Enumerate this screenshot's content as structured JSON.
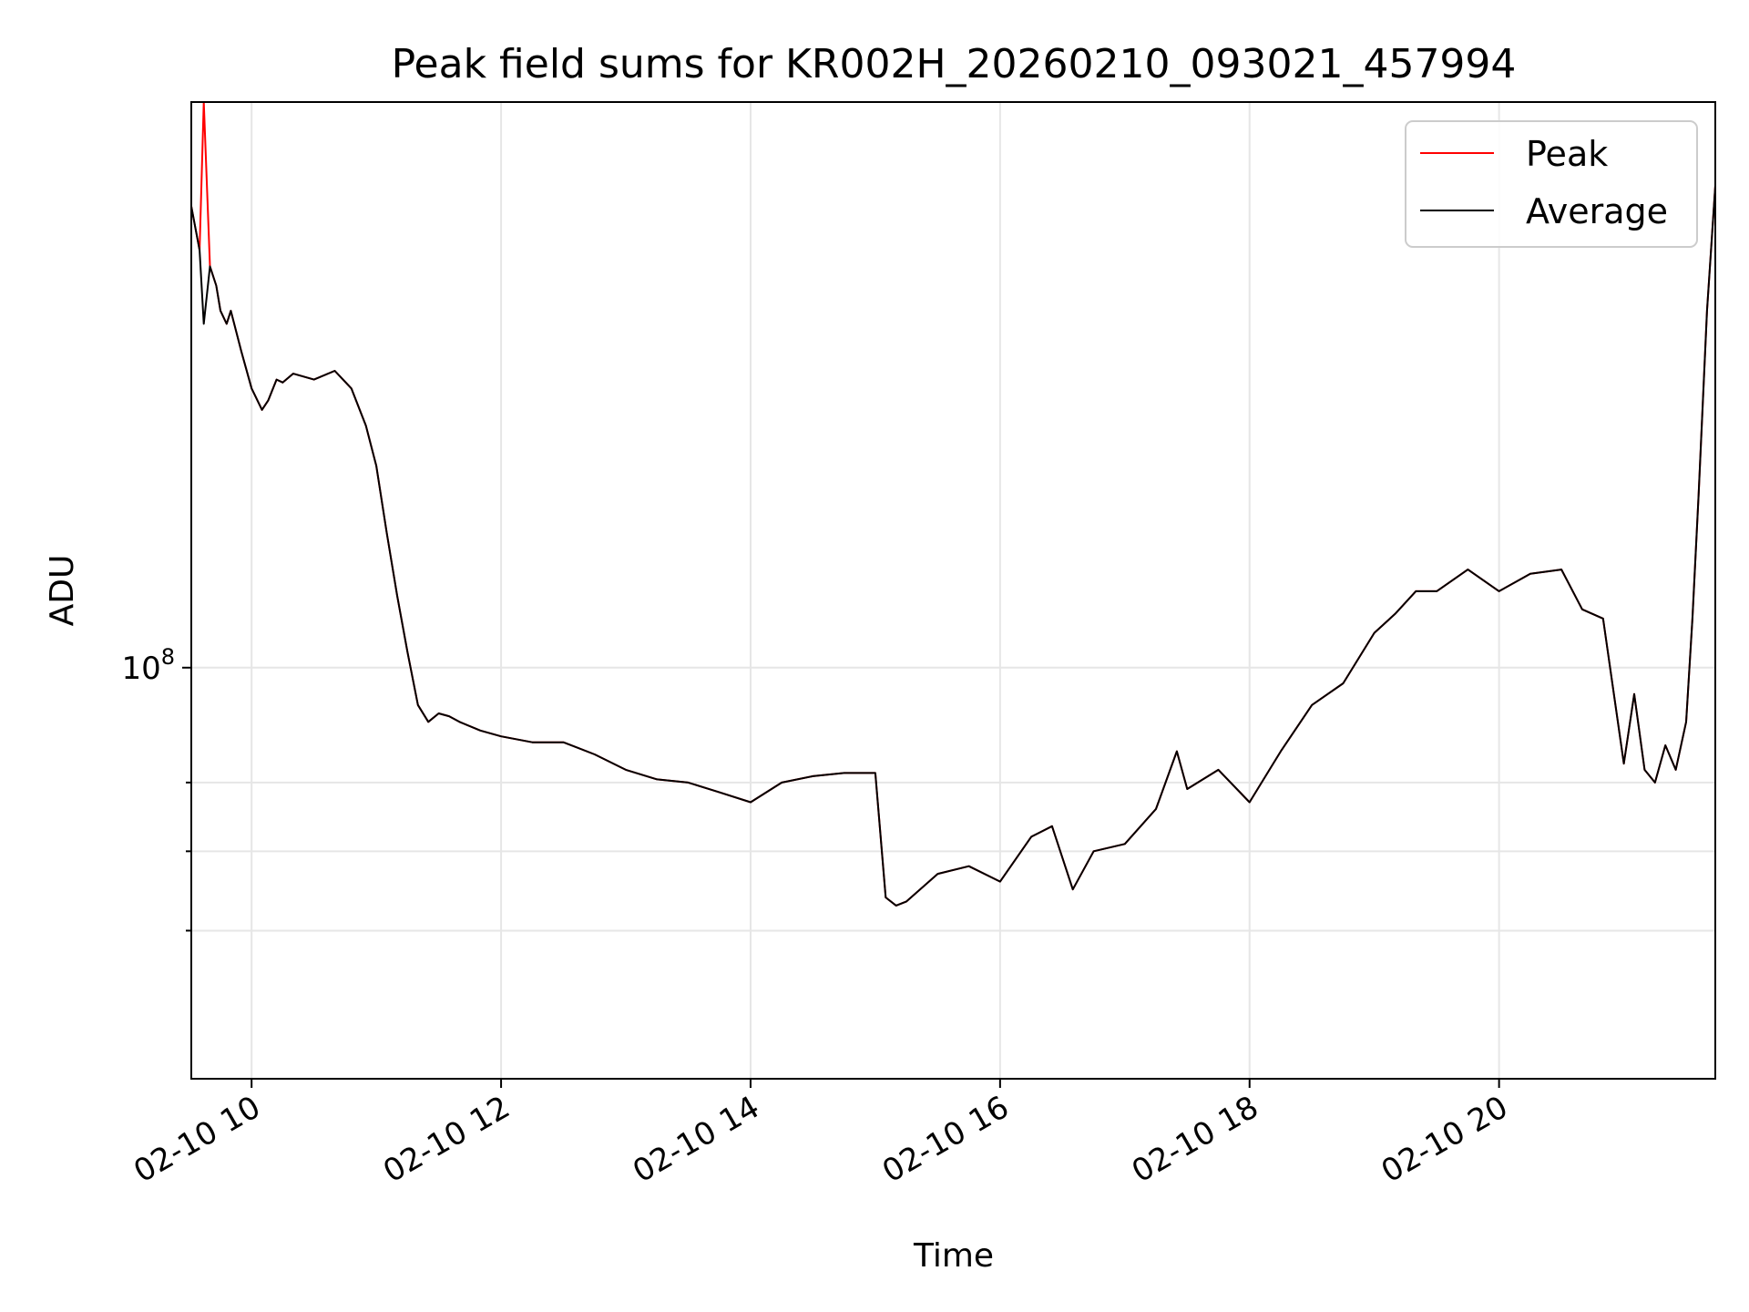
{
  "chart_data": {
    "type": "line",
    "title": "Peak field sums for KR002H_20260210_093021_457994",
    "xlabel": "Time",
    "ylabel": "ADU",
    "x_range": [
      "2026-02-10 09:31",
      "2026-02-10 21:44"
    ],
    "ylim": [
      45000000,
      300000000
    ],
    "yscale": "log",
    "grid": true,
    "legend_position": "upper right",
    "x_ticks": [
      {
        "time": "2026-02-10 10:00",
        "label": "02-10 10"
      },
      {
        "time": "2026-02-10 12:00",
        "label": "02-10 12"
      },
      {
        "time": "2026-02-10 14:00",
        "label": "02-10 14"
      },
      {
        "time": "2026-02-10 16:00",
        "label": "02-10 16"
      },
      {
        "time": "2026-02-10 18:00",
        "label": "02-10 18"
      },
      {
        "time": "2026-02-10 20:00",
        "label": "02-10 20"
      }
    ],
    "y_ticks": [
      {
        "value": 100000000,
        "base": "10",
        "exp": "8"
      },
      {
        "value": 60000000,
        "base": "",
        "exp": ""
      },
      {
        "value": 70000000,
        "base": "",
        "exp": ""
      },
      {
        "value": 80000000,
        "base": "",
        "exp": ""
      }
    ],
    "x": [
      "2026-02-10 09:31",
      "2026-02-10 09:35",
      "2026-02-10 09:37",
      "2026-02-10 09:40",
      "2026-02-10 09:43",
      "2026-02-10 09:45",
      "2026-02-10 09:48",
      "2026-02-10 09:50",
      "2026-02-10 09:55",
      "2026-02-10 10:00",
      "2026-02-10 10:05",
      "2026-02-10 10:08",
      "2026-02-10 10:12",
      "2026-02-10 10:15",
      "2026-02-10 10:20",
      "2026-02-10 10:30",
      "2026-02-10 10:40",
      "2026-02-10 10:48",
      "2026-02-10 10:55",
      "2026-02-10 11:00",
      "2026-02-10 11:05",
      "2026-02-10 11:10",
      "2026-02-10 11:15",
      "2026-02-10 11:20",
      "2026-02-10 11:25",
      "2026-02-10 11:30",
      "2026-02-10 11:35",
      "2026-02-10 11:40",
      "2026-02-10 11:50",
      "2026-02-10 12:00",
      "2026-02-10 12:15",
      "2026-02-10 12:30",
      "2026-02-10 12:45",
      "2026-02-10 13:00",
      "2026-02-10 13:15",
      "2026-02-10 13:30",
      "2026-02-10 13:45",
      "2026-02-10 14:00",
      "2026-02-10 14:15",
      "2026-02-10 14:30",
      "2026-02-10 14:45",
      "2026-02-10 15:00",
      "2026-02-10 15:05",
      "2026-02-10 15:10",
      "2026-02-10 15:15",
      "2026-02-10 15:30",
      "2026-02-10 15:45",
      "2026-02-10 16:00",
      "2026-02-10 16:15",
      "2026-02-10 16:25",
      "2026-02-10 16:35",
      "2026-02-10 16:45",
      "2026-02-10 17:00",
      "2026-02-10 17:15",
      "2026-02-10 17:25",
      "2026-02-10 17:30",
      "2026-02-10 17:45",
      "2026-02-10 18:00",
      "2026-02-10 18:15",
      "2026-02-10 18:30",
      "2026-02-10 18:45",
      "2026-02-10 19:00",
      "2026-02-10 19:10",
      "2026-02-10 19:20",
      "2026-02-10 19:30",
      "2026-02-10 19:45",
      "2026-02-10 20:00",
      "2026-02-10 20:15",
      "2026-02-10 20:30",
      "2026-02-10 20:40",
      "2026-02-10 20:50",
      "2026-02-10 21:00",
      "2026-02-10 21:05",
      "2026-02-10 21:10",
      "2026-02-10 21:15",
      "2026-02-10 21:20",
      "2026-02-10 21:25",
      "2026-02-10 21:30",
      "2026-02-10 21:33",
      "2026-02-10 21:36",
      "2026-02-10 21:40",
      "2026-02-10 21:44"
    ],
    "series": [
      {
        "name": "Peak",
        "color": "#ff0000",
        "values": [
          245000000,
          225000000,
          300000000,
          218000000,
          210000000,
          200000000,
          195000000,
          200000000,
          185000000,
          172000000,
          165000000,
          168000000,
          175000000,
          174000000,
          177000000,
          175000000,
          178000000,
          172000000,
          160000000,
          148000000,
          130000000,
          115000000,
          103000000,
          93000000,
          90000000,
          91500000,
          91000000,
          90000000,
          88500000,
          87500000,
          86500000,
          86500000,
          84500000,
          82000000,
          80500000,
          80000000,
          78500000,
          77000000,
          80000000,
          81000000,
          81500000,
          81500000,
          64000000,
          63000000,
          63500000,
          67000000,
          68000000,
          66000000,
          72000000,
          73500000,
          65000000,
          70000000,
          71000000,
          76000000,
          85000000,
          79000000,
          82000000,
          77000000,
          85000000,
          93000000,
          97000000,
          107000000,
          111000000,
          116000000,
          116000000,
          121000000,
          116000000,
          120000000,
          121000000,
          112000000,
          110000000,
          83000000,
          95000000,
          82000000,
          80000000,
          86000000,
          82000000,
          90000000,
          110000000,
          140000000,
          200000000,
          255000000
        ]
      },
      {
        "name": "Average",
        "color": "#000000",
        "values": [
          245000000,
          225000000,
          195000000,
          218000000,
          210000000,
          200000000,
          195000000,
          200000000,
          185000000,
          172000000,
          165000000,
          168000000,
          175000000,
          174000000,
          177000000,
          175000000,
          178000000,
          172000000,
          160000000,
          148000000,
          130000000,
          115000000,
          103000000,
          93000000,
          90000000,
          91500000,
          91000000,
          90000000,
          88500000,
          87500000,
          86500000,
          86500000,
          84500000,
          82000000,
          80500000,
          80000000,
          78500000,
          77000000,
          80000000,
          81000000,
          81500000,
          81500000,
          64000000,
          63000000,
          63500000,
          67000000,
          68000000,
          66000000,
          72000000,
          73500000,
          65000000,
          70000000,
          71000000,
          76000000,
          85000000,
          79000000,
          82000000,
          77000000,
          85000000,
          93000000,
          97000000,
          107000000,
          111000000,
          116000000,
          116000000,
          121000000,
          116000000,
          120000000,
          121000000,
          112000000,
          110000000,
          83000000,
          95000000,
          82000000,
          80000000,
          86000000,
          82000000,
          90000000,
          110000000,
          140000000,
          200000000,
          255000000
        ]
      }
    ]
  }
}
